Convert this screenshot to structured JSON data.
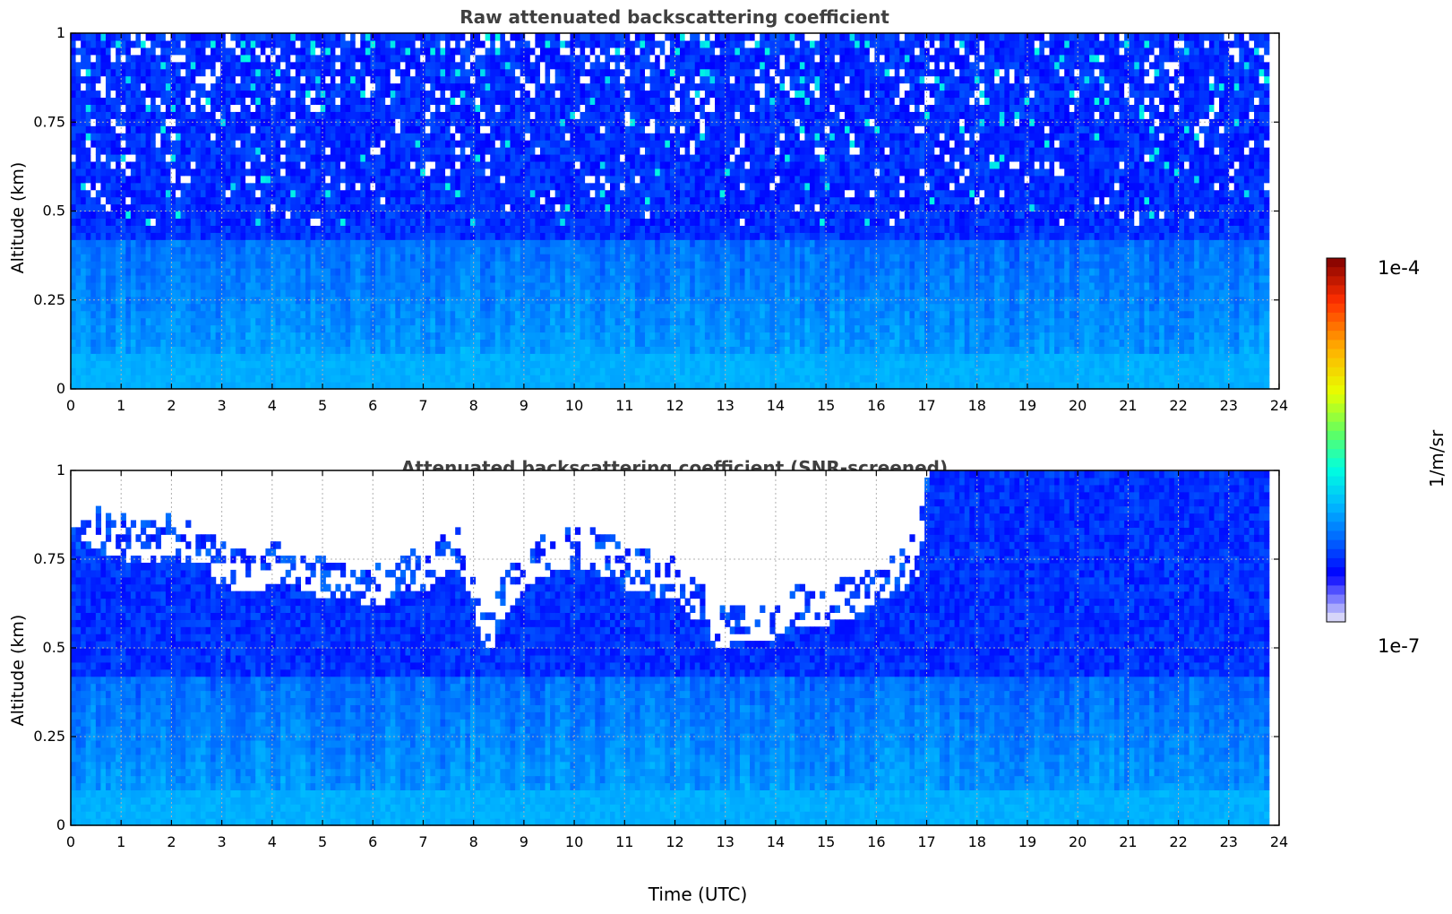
{
  "chart_data": [
    {
      "type": "heatmap",
      "title": "Raw attenuated backscattering coefficient",
      "xlabel": "",
      "ylabel": "Altitude (km)",
      "xlim": [
        0,
        24
      ],
      "ylim": [
        0,
        1
      ],
      "x_ticks": [
        "0",
        "1",
        "2",
        "3",
        "4",
        "5",
        "6",
        "7",
        "8",
        "9",
        "10",
        "11",
        "12",
        "13",
        "14",
        "15",
        "16",
        "17",
        "18",
        "19",
        "20",
        "21",
        "22",
        "23",
        "24"
      ],
      "y_ticks": [
        "0",
        "0.25",
        "0.5",
        "0.75",
        "1"
      ],
      "data_end_time": 23.8,
      "grid": true,
      "screened": false
    },
    {
      "type": "heatmap",
      "title": "Attenuated backscattering coefficient (SNR-screened)",
      "xlabel": "Time (UTC)",
      "ylabel": "Altitude (km)",
      "xlim": [
        0,
        24
      ],
      "ylim": [
        0,
        1
      ],
      "x_ticks": [
        "0",
        "1",
        "2",
        "3",
        "4",
        "5",
        "6",
        "7",
        "8",
        "9",
        "10",
        "11",
        "12",
        "13",
        "14",
        "15",
        "16",
        "17",
        "18",
        "19",
        "20",
        "21",
        "22",
        "23",
        "24"
      ],
      "y_ticks": [
        "0",
        "0.25",
        "0.5",
        "0.75",
        "1"
      ],
      "data_end_time": 23.8,
      "grid": true,
      "screened": true,
      "signal_top_profile": {
        "time": [
          0,
          0.5,
          1,
          1.5,
          2,
          2.5,
          3,
          3.5,
          4,
          4.5,
          5,
          5.5,
          6,
          6.5,
          7,
          7.5,
          7.8,
          8,
          8.3,
          8.5,
          9,
          9.5,
          10,
          10.5,
          11,
          11.5,
          12,
          12.5,
          12.8,
          13,
          13.5,
          14,
          14.5,
          15,
          15.5,
          16,
          16.5,
          16.8,
          17,
          18,
          19,
          20,
          21,
          22,
          23,
          23.8
        ],
        "altitude_km": [
          0.78,
          0.76,
          0.74,
          0.73,
          0.75,
          0.72,
          0.66,
          0.64,
          0.67,
          0.66,
          0.63,
          0.63,
          0.6,
          0.64,
          0.65,
          0.72,
          0.68,
          0.55,
          0.45,
          0.56,
          0.66,
          0.7,
          0.72,
          0.7,
          0.66,
          0.64,
          0.62,
          0.55,
          0.49,
          0.5,
          0.5,
          0.52,
          0.55,
          0.56,
          0.58,
          0.63,
          0.66,
          0.7,
          1.0,
          1.0,
          1.0,
          1.0,
          1.0,
          1.0,
          1.0,
          1.0
        ]
      }
    }
  ],
  "colorbar": {
    "label": "1/m/sr",
    "max_label": "1e-4",
    "min_label": "1e-7",
    "scale": "log",
    "colors": [
      "#ecebf8",
      "#6f6fff",
      "#0000ff",
      "#0060ff",
      "#00b8ff",
      "#00ffe0",
      "#60ff60",
      "#e8ff00",
      "#ffb000",
      "#ff3000",
      "#800000"
    ]
  }
}
